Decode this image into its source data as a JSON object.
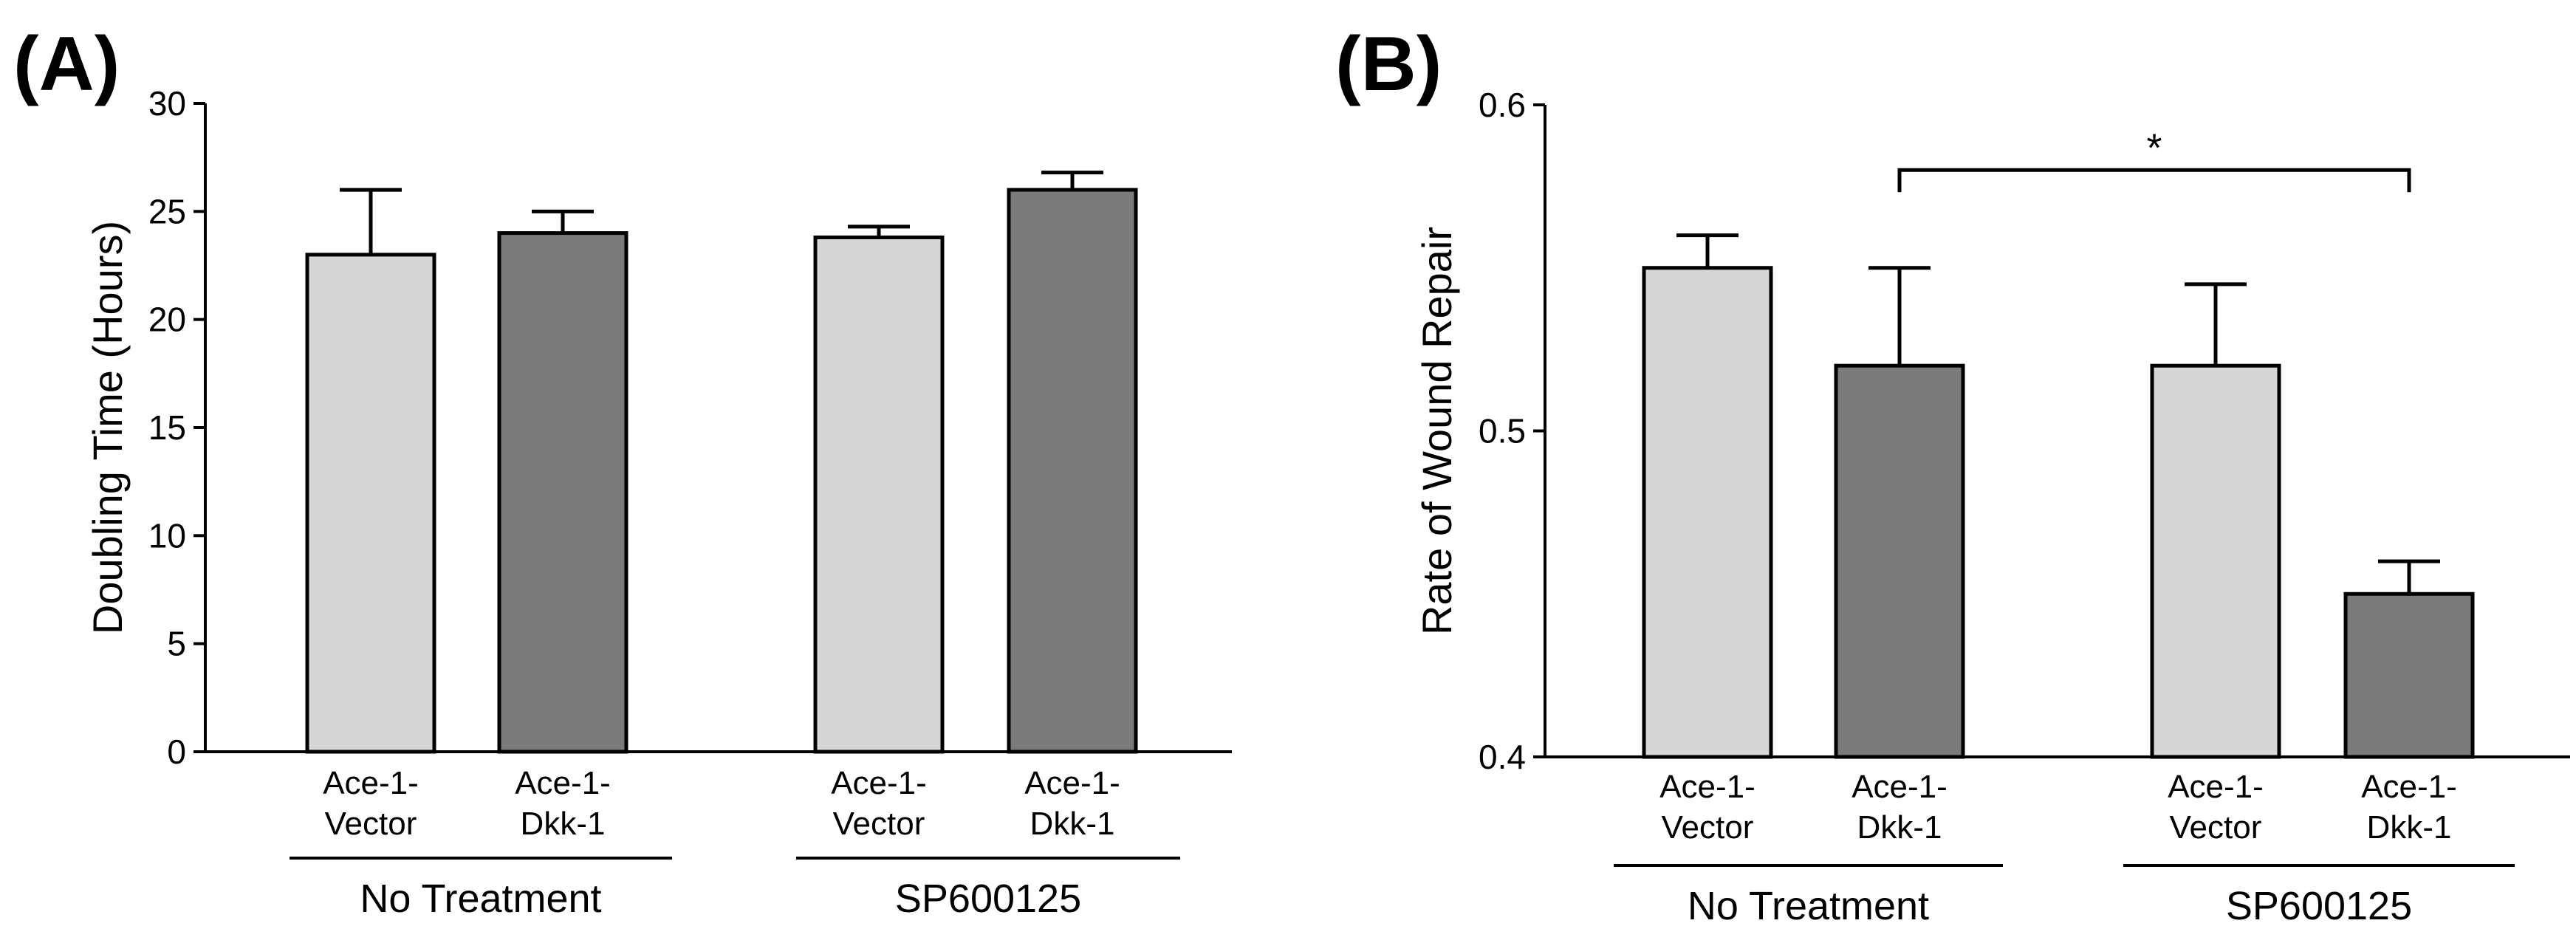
{
  "chart_data": [
    {
      "panel": "(A)",
      "type": "bar",
      "ylabel": "Doubling Time (Hours)",
      "ylim": [
        0,
        30
      ],
      "yticks": [
        0,
        5,
        10,
        15,
        20,
        25,
        30
      ],
      "bars": [
        {
          "label": [
            "Ace-1-",
            "Vector"
          ],
          "value": 23.0,
          "error": 3.0,
          "series": "Ace-1-Vector",
          "color": "#d6d6d6"
        },
        {
          "label": [
            "Ace-1-",
            "Dkk-1"
          ],
          "value": 24.0,
          "error": 1.0,
          "series": "Ace-1-Dkk-1",
          "color": "#7a7a7a"
        },
        {
          "label": [
            "Ace-1-",
            "Vector"
          ],
          "value": 23.8,
          "error": 0.5,
          "series": "Ace-1-Vector",
          "color": "#d6d6d6"
        },
        {
          "label": [
            "Ace-1-",
            "Dkk-1"
          ],
          "value": 26.0,
          "error": 0.8,
          "series": "Ace-1-Dkk-1",
          "color": "#7a7a7a"
        }
      ],
      "groups": [
        {
          "name": "No Treatment",
          "bars": [
            0,
            1
          ]
        },
        {
          "name": "SP600125",
          "bars": [
            2,
            3
          ]
        }
      ],
      "significance": []
    },
    {
      "panel": "(B)",
      "type": "bar",
      "ylabel": "Rate of Wound Repair",
      "ylim": [
        0.4,
        0.6
      ],
      "yticks": [
        0.4,
        0.5,
        0.6
      ],
      "bars": [
        {
          "label": [
            "Ace-1-",
            "Vector"
          ],
          "value": 0.55,
          "error": 0.01,
          "series": "Ace-1-Vector",
          "color": "#d6d6d6"
        },
        {
          "label": [
            "Ace-1-",
            "Dkk-1"
          ],
          "value": 0.52,
          "error": 0.03,
          "series": "Ace-1-Dkk-1",
          "color": "#7a7a7a"
        },
        {
          "label": [
            "Ace-1-",
            "Vector"
          ],
          "value": 0.52,
          "error": 0.025,
          "series": "Ace-1-Vector",
          "color": "#d6d6d6"
        },
        {
          "label": [
            "Ace-1-",
            "Dkk-1"
          ],
          "value": 0.45,
          "error": 0.01,
          "series": "Ace-1-Dkk-1",
          "color": "#7a7a7a"
        }
      ],
      "groups": [
        {
          "name": "No Treatment",
          "bars": [
            0,
            1
          ]
        },
        {
          "name": "SP600125",
          "bars": [
            2,
            3
          ]
        }
      ],
      "significance": [
        {
          "from": 1,
          "to": 3,
          "label": "*",
          "level": 0.58
        }
      ]
    }
  ]
}
